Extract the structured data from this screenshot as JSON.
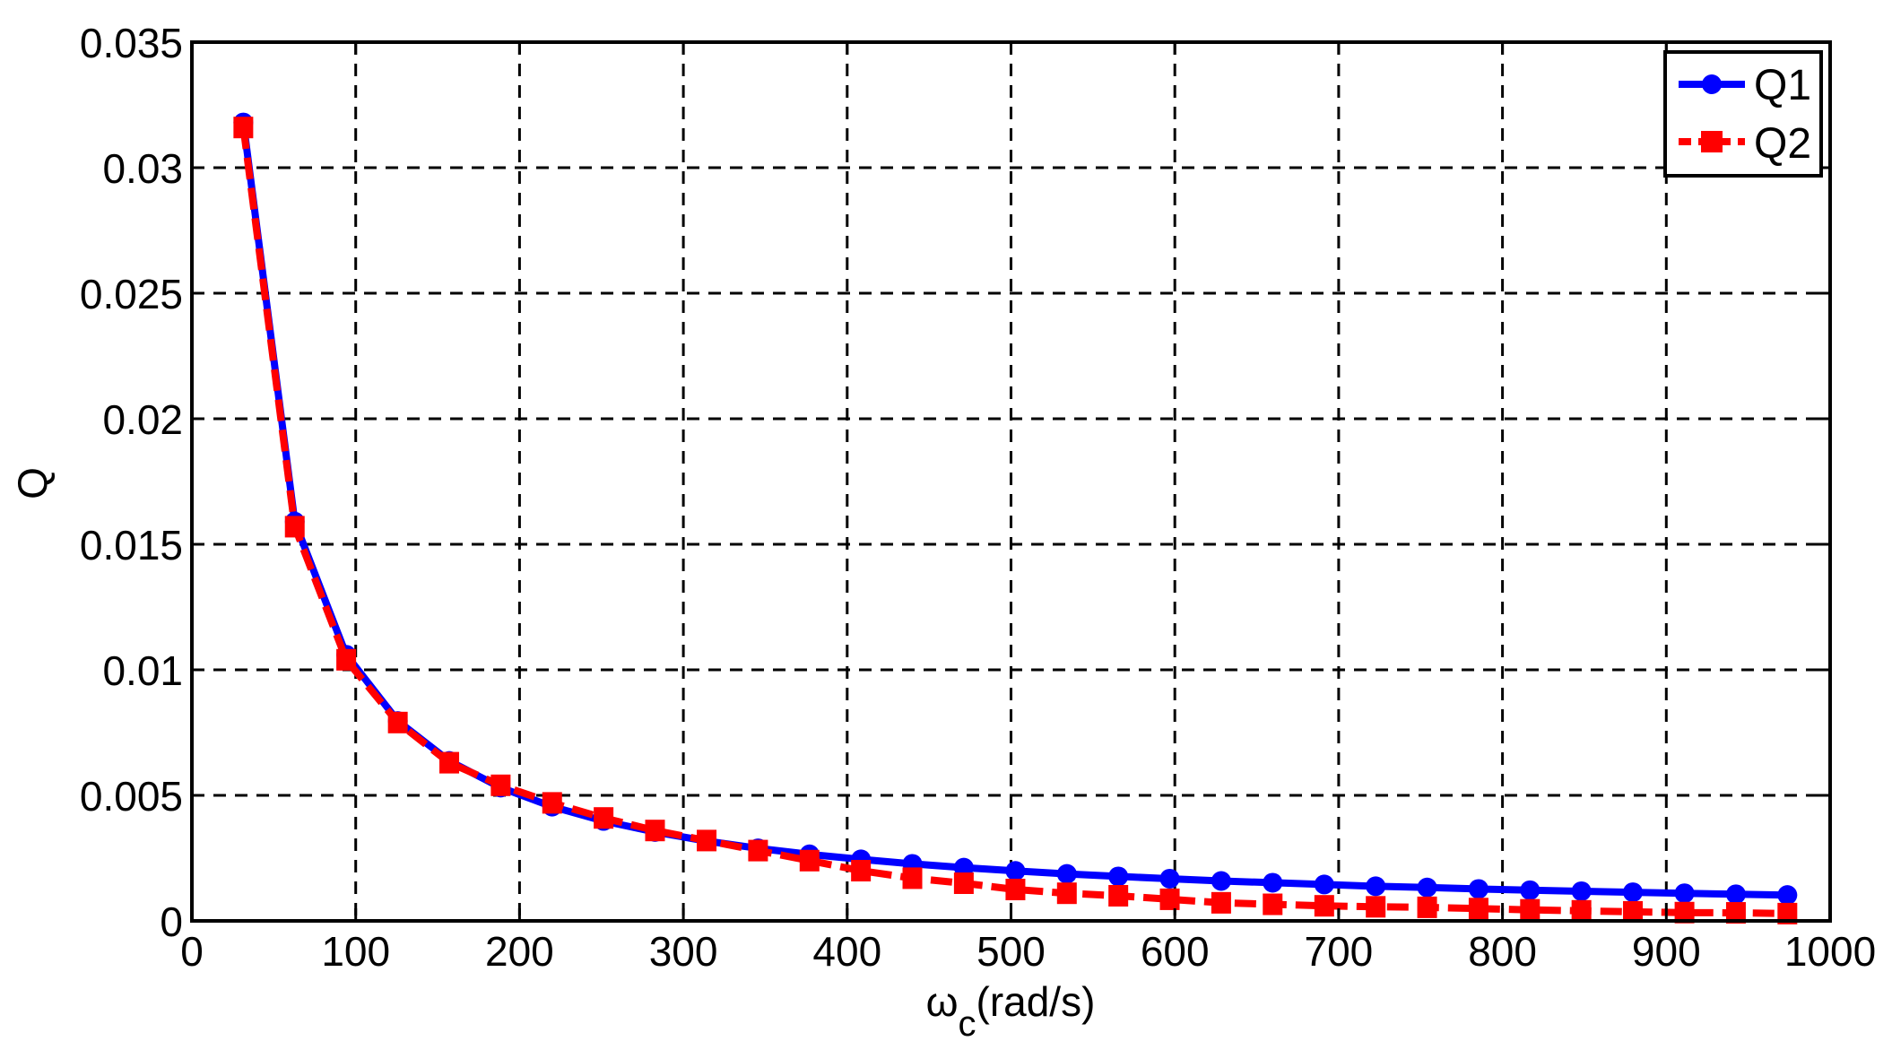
{
  "chart_data": {
    "type": "line",
    "title": "",
    "xlabel": "ω_c(rad/s)",
    "xlabel_main": "ω",
    "xlabel_sub": "c",
    "xlabel_rest": "(rad/s)",
    "ylabel": "Q",
    "xlim": [
      0,
      1000
    ],
    "ylim": [
      0,
      0.035
    ],
    "x_ticks": [
      0,
      100,
      200,
      300,
      400,
      500,
      600,
      700,
      800,
      900,
      1000
    ],
    "x_tick_labels": [
      "0",
      "100",
      "200",
      "300",
      "400",
      "500",
      "600",
      "700",
      "800",
      "900",
      "1000"
    ],
    "y_ticks": [
      0,
      0.005,
      0.01,
      0.015,
      0.02,
      0.025,
      0.03,
      0.035
    ],
    "y_tick_labels": [
      "0",
      "0.005",
      "0.01",
      "0.015",
      "0.02",
      "0.025",
      "0.03",
      "0.035"
    ],
    "grid": true,
    "legend_position": "upper right",
    "x": [
      31.4,
      62.8,
      94.2,
      125.7,
      157.1,
      188.5,
      219.9,
      251.3,
      282.7,
      314.2,
      345.6,
      377.0,
      408.4,
      439.8,
      471.2,
      502.7,
      534.1,
      565.5,
      596.9,
      628.3,
      659.7,
      691.2,
      722.6,
      754.0,
      785.4,
      816.8,
      848.2,
      879.6,
      911.1,
      942.5,
      973.9
    ],
    "series": [
      {
        "name": "Q1",
        "color": "#0000ff",
        "line_style": "solid",
        "marker": "circle",
        "values": [
          0.0318,
          0.0159,
          0.0106,
          0.00796,
          0.00637,
          0.00531,
          0.00455,
          0.00398,
          0.00354,
          0.00318,
          0.00289,
          0.00265,
          0.00245,
          0.00227,
          0.00212,
          0.00199,
          0.00187,
          0.00177,
          0.00168,
          0.00159,
          0.00152,
          0.00145,
          0.00138,
          0.00133,
          0.00127,
          0.00122,
          0.00118,
          0.00114,
          0.0011,
          0.00106,
          0.00103
        ]
      },
      {
        "name": "Q2",
        "color": "#ff0000",
        "line_style": "dashed",
        "marker": "square",
        "values": [
          0.0316,
          0.0157,
          0.0104,
          0.0079,
          0.0063,
          0.0054,
          0.0047,
          0.0041,
          0.0036,
          0.0032,
          0.0028,
          0.0024,
          0.002,
          0.0017,
          0.0015,
          0.00125,
          0.0011,
          0.001,
          0.00086,
          0.00072,
          0.00066,
          0.0006,
          0.00056,
          0.00054,
          0.00049,
          0.00044,
          0.0004,
          0.00036,
          0.00033,
          0.00032,
          0.00029
        ]
      }
    ]
  }
}
